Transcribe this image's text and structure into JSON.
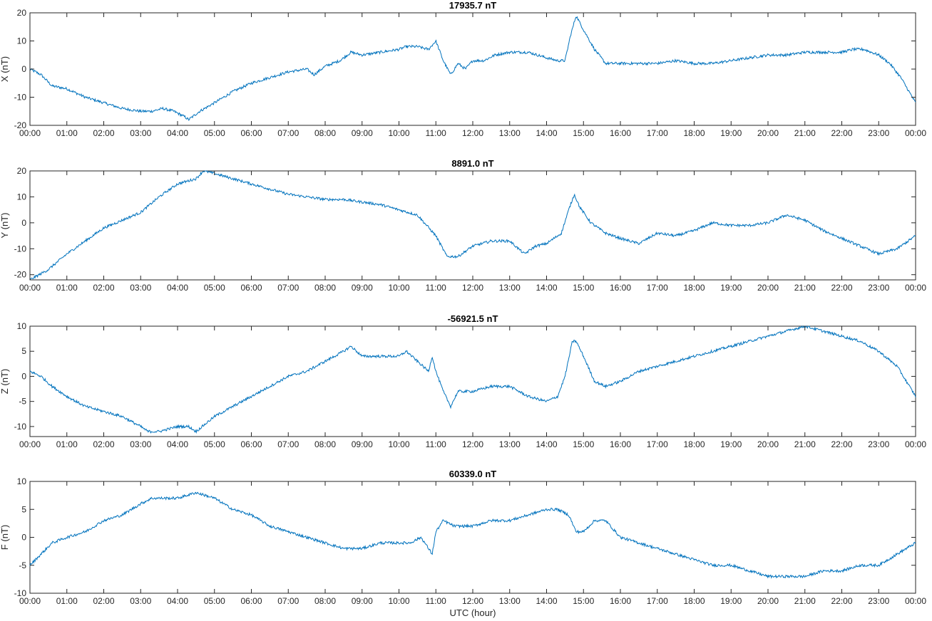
{
  "figure": {
    "xlabel": "UTC (hour)",
    "line_color": "#0072BD",
    "axis_color": "#262626"
  },
  "chart_data": [
    {
      "type": "line",
      "title": "17935.7 nT",
      "ylabel": "X (nT)",
      "xlabel": "",
      "xlim": [
        0,
        24
      ],
      "ylim": [
        -20,
        20
      ],
      "yticks": [
        -20,
        -10,
        0,
        10,
        20
      ],
      "xtick_labels": [
        "00:00",
        "01:00",
        "02:00",
        "03:00",
        "04:00",
        "05:00",
        "06:00",
        "07:00",
        "08:00",
        "09:00",
        "10:00",
        "11:00",
        "12:00",
        "13:00",
        "14:00",
        "15:00",
        "16:00",
        "17:00",
        "18:00",
        "19:00",
        "20:00",
        "21:00",
        "22:00",
        "23:00",
        "00:00"
      ],
      "series": [
        {
          "x": [
            0,
            0.3,
            0.6,
            1.0,
            1.5,
            2.0,
            2.5,
            3.0,
            3.3,
            3.6,
            3.9,
            4.2,
            4.3,
            4.6,
            5.0,
            5.5,
            6.0,
            6.5,
            7.0,
            7.5,
            7.7,
            8.0,
            8.4,
            8.7,
            9.0,
            9.5,
            10.0,
            10.2,
            10.5,
            10.8,
            11.0,
            11.2,
            11.4,
            11.6,
            11.8,
            12.0,
            12.3,
            12.6,
            13.0,
            13.5,
            14.0,
            14.3,
            14.5,
            14.65,
            14.8,
            15.0,
            15.3,
            15.6,
            16.0,
            16.5,
            17.0,
            17.5,
            18.0,
            18.5,
            19.0,
            19.5,
            20.0,
            20.5,
            21.0,
            21.5,
            22.0,
            22.3,
            22.6,
            23.0,
            23.3,
            23.6,
            24.0
          ],
          "y": [
            0,
            -2,
            -6,
            -7,
            -10,
            -12,
            -14,
            -15,
            -15,
            -14,
            -15,
            -17,
            -18,
            -15,
            -12,
            -8,
            -5,
            -3,
            -1,
            0,
            -2,
            1,
            3,
            6,
            5,
            6,
            7,
            8,
            8,
            7,
            10,
            3,
            -2,
            2,
            0,
            3,
            3,
            5,
            6,
            6,
            4,
            3,
            3,
            12,
            19,
            14,
            7,
            2,
            2,
            2,
            2,
            3,
            2,
            2,
            3,
            4,
            5,
            5,
            6,
            6,
            6,
            7,
            7,
            5,
            2,
            -3,
            -12
          ]
        }
      ]
    },
    {
      "type": "line",
      "title": "8891.0 nT",
      "ylabel": "Y (nT)",
      "xlabel": "",
      "xlim": [
        0,
        24
      ],
      "ylim": [
        -22,
        20
      ],
      "yticks": [
        -20,
        -10,
        0,
        10,
        20
      ],
      "xtick_labels": [
        "00:00",
        "01:00",
        "02:00",
        "03:00",
        "04:00",
        "05:00",
        "06:00",
        "07:00",
        "08:00",
        "09:00",
        "10:00",
        "11:00",
        "12:00",
        "13:00",
        "14:00",
        "15:00",
        "16:00",
        "17:00",
        "18:00",
        "19:00",
        "20:00",
        "21:00",
        "22:00",
        "23:00",
        "00:00"
      ],
      "series": [
        {
          "x": [
            0,
            0.5,
            1.0,
            1.5,
            2.0,
            2.5,
            3.0,
            3.5,
            4.0,
            4.5,
            4.7,
            5.0,
            5.5,
            6.0,
            6.5,
            7.0,
            7.5,
            8.0,
            8.5,
            9.0,
            9.5,
            10.0,
            10.5,
            11.0,
            11.3,
            11.6,
            12.0,
            12.5,
            13.0,
            13.4,
            13.7,
            14.0,
            14.4,
            14.6,
            14.75,
            14.9,
            15.2,
            15.6,
            16.0,
            16.5,
            17.0,
            17.5,
            18.0,
            18.5,
            19.0,
            19.5,
            20.0,
            20.5,
            21.0,
            21.5,
            22.0,
            22.5,
            23.0,
            23.5,
            24.0
          ],
          "y": [
            -22,
            -18,
            -12,
            -7,
            -2,
            1,
            4,
            10,
            15,
            17,
            20,
            19,
            17,
            15,
            13,
            11,
            10,
            9,
            9,
            8,
            7,
            5,
            3,
            -5,
            -13,
            -13,
            -9,
            -7,
            -7,
            -12,
            -9,
            -8,
            -4,
            5,
            11,
            6,
            0,
            -4,
            -6,
            -8,
            -4,
            -5,
            -3,
            0,
            -1,
            -1,
            0,
            3,
            1,
            -3,
            -6,
            -9,
            -12,
            -10,
            -5
          ]
        }
      ]
    },
    {
      "type": "line",
      "title": "-56921.5 nT",
      "ylabel": "Z (nT)",
      "xlabel": "",
      "xlim": [
        0,
        24
      ],
      "ylim": [
        -12,
        10
      ],
      "yticks": [
        -10,
        -5,
        0,
        5,
        10
      ],
      "xtick_labels": [
        "00:00",
        "01:00",
        "02:00",
        "03:00",
        "04:00",
        "05:00",
        "06:00",
        "07:00",
        "08:00",
        "09:00",
        "10:00",
        "11:00",
        "12:00",
        "13:00",
        "14:00",
        "15:00",
        "16:00",
        "17:00",
        "18:00",
        "19:00",
        "20:00",
        "21:00",
        "22:00",
        "23:00",
        "00:00"
      ],
      "series": [
        {
          "x": [
            0,
            0.3,
            0.6,
            1.0,
            1.5,
            2.0,
            2.5,
            3.0,
            3.2,
            3.5,
            4.0,
            4.3,
            4.5,
            5.0,
            5.5,
            6.0,
            6.5,
            7.0,
            7.5,
            8.0,
            8.5,
            8.7,
            9.0,
            9.5,
            10.0,
            10.2,
            10.5,
            10.8,
            10.9,
            11.0,
            11.2,
            11.4,
            11.6,
            11.8,
            12.0,
            12.5,
            13.0,
            13.5,
            14.0,
            14.3,
            14.5,
            14.7,
            14.8,
            15.0,
            15.3,
            15.6,
            16.0,
            16.5,
            17.0,
            17.5,
            18.0,
            18.5,
            19.0,
            19.5,
            20.0,
            20.5,
            21.0,
            21.5,
            22.0,
            22.5,
            23.0,
            23.5,
            24.0
          ],
          "y": [
            1,
            0,
            -2,
            -4,
            -6,
            -7,
            -8,
            -10,
            -11,
            -11,
            -10,
            -10,
            -11,
            -8,
            -6,
            -4,
            -2,
            0,
            1,
            3,
            5,
            6,
            4,
            4,
            4,
            5,
            3,
            1,
            4,
            1,
            -3,
            -6,
            -3,
            -3,
            -3,
            -2,
            -2,
            -4,
            -5,
            -4,
            0,
            7,
            7,
            4,
            -1,
            -2,
            -1,
            1,
            2,
            3,
            4,
            5,
            6,
            7,
            8,
            9,
            10,
            9,
            8,
            7,
            5,
            2,
            -4
          ]
        }
      ]
    },
    {
      "type": "line",
      "title": "60339.0 nT",
      "ylabel": "F (nT)",
      "xlabel": "UTC (hour)",
      "xlim": [
        0,
        24
      ],
      "ylim": [
        -10,
        10
      ],
      "yticks": [
        -10,
        -5,
        0,
        5,
        10
      ],
      "xtick_labels": [
        "00:00",
        "01:00",
        "02:00",
        "03:00",
        "04:00",
        "05:00",
        "06:00",
        "07:00",
        "08:00",
        "09:00",
        "10:00",
        "11:00",
        "12:00",
        "13:00",
        "14:00",
        "15:00",
        "16:00",
        "17:00",
        "18:00",
        "19:00",
        "20:00",
        "21:00",
        "22:00",
        "23:00",
        "00:00"
      ],
      "series": [
        {
          "x": [
            0,
            0.3,
            0.6,
            1.0,
            1.5,
            2.0,
            2.5,
            3.0,
            3.3,
            3.7,
            4.0,
            4.5,
            5.0,
            5.5,
            6.0,
            6.5,
            7.0,
            7.5,
            8.0,
            8.5,
            9.0,
            9.5,
            10.0,
            10.3,
            10.6,
            10.8,
            10.9,
            11.0,
            11.2,
            11.5,
            11.7,
            12.0,
            12.5,
            13.0,
            13.5,
            14.0,
            14.3,
            14.6,
            14.8,
            15.0,
            15.3,
            15.6,
            16.0,
            16.5,
            17.0,
            17.5,
            18.0,
            18.5,
            19.0,
            19.5,
            20.0,
            20.5,
            21.0,
            21.5,
            22.0,
            22.5,
            23.0,
            23.5,
            24.0
          ],
          "y": [
            -5,
            -3,
            -1,
            0,
            1,
            3,
            4,
            6,
            7,
            7,
            7,
            8,
            7,
            5,
            4,
            2,
            1,
            0,
            -1,
            -2,
            -2,
            -1,
            -1,
            -1,
            0,
            -2,
            -3,
            1,
            3,
            2,
            2,
            2,
            3,
            3,
            4,
            5,
            5,
            4,
            1,
            1,
            3,
            3,
            0,
            -1,
            -2,
            -3,
            -4,
            -5,
            -5,
            -6,
            -7,
            -7,
            -7,
            -6,
            -6,
            -5,
            -5,
            -3,
            -1
          ]
        }
      ]
    }
  ]
}
